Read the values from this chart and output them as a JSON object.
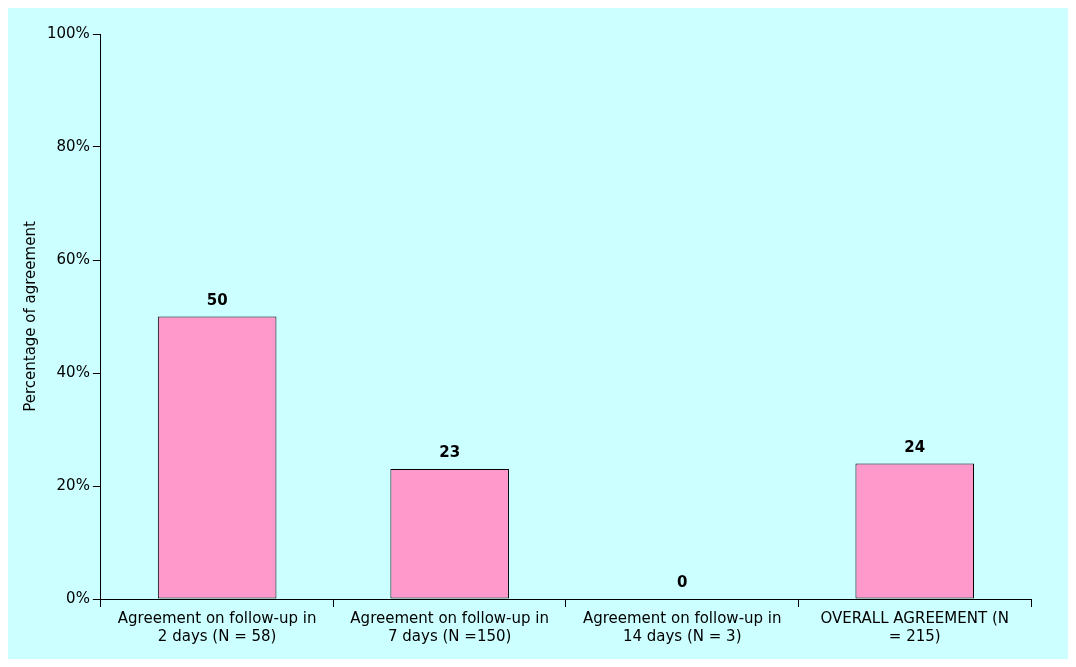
{
  "chart_data": {
    "type": "bar",
    "ylabel": "Percentage of agreement",
    "categories": [
      "Agreement on follow-up in 2 days (N = 58)",
      "Agreement on follow-up in 7 days (N =150)",
      "Agreement on follow-up in 14 days (N = 3)",
      "OVERALL AGREEMENT (N = 215)"
    ],
    "values": [
      50,
      23,
      0,
      24
    ],
    "color": "#ff99cc",
    "ylim": [
      0,
      100
    ],
    "yticks": [
      {
        "value": 0,
        "label": "0%"
      },
      {
        "value": 20,
        "label": "20%"
      },
      {
        "value": 40,
        "label": "40%"
      },
      {
        "value": 60,
        "label": "60%"
      },
      {
        "value": 80,
        "label": "80%"
      },
      {
        "value": 100,
        "label": "100%"
      }
    ],
    "grid": false,
    "legend": false,
    "data_labels": true
  }
}
